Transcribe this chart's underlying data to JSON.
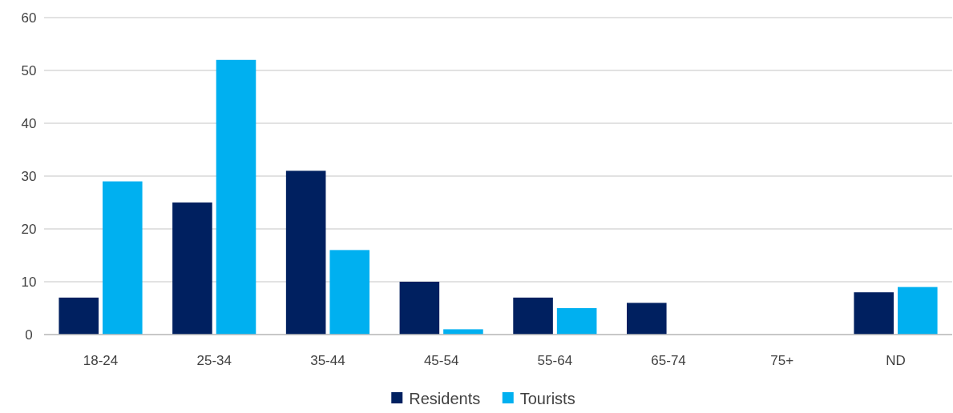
{
  "chart_data": {
    "type": "bar",
    "categories": [
      "18-24",
      "25-34",
      "35-44",
      "45-54",
      "55-64",
      "65-74",
      "75+",
      "ND"
    ],
    "series": [
      {
        "name": "Residents",
        "color": "#002060",
        "values": [
          7,
          25,
          31,
          10,
          7,
          6,
          0,
          8
        ]
      },
      {
        "name": "Tourists",
        "color": "#00b0f0",
        "values": [
          29,
          52,
          16,
          1,
          5,
          0,
          0,
          9
        ]
      }
    ],
    "ylim": [
      0,
      60
    ],
    "yticks": [
      0,
      10,
      20,
      30,
      40,
      50,
      60
    ],
    "grid": "y",
    "legend": "bottom"
  }
}
